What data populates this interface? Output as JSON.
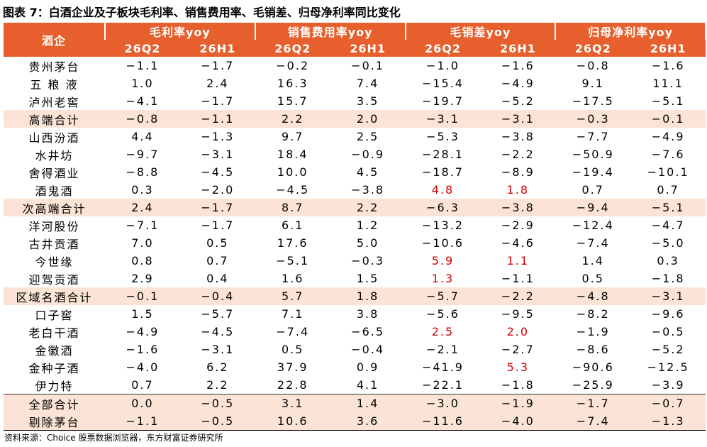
{
  "title": "图表 7：白酒企业及子板块毛利率、销售费用率、毛销差、归母净利率同比变化",
  "table": {
    "header": {
      "first": "酒企",
      "groups": [
        "毛利率yoy",
        "销售费用率yoy",
        "毛销差yoy",
        "归母净利率yoy"
      ],
      "periods": [
        "26Q2",
        "26H1",
        "26Q2",
        "26H1",
        "26Q2",
        "26H1",
        "26Q2",
        "26H1"
      ]
    },
    "rows": [
      [
        "贵州茅台",
        "−1.1",
        "−1.7",
        "−0.2",
        "−0.1",
        "−1.0",
        "−1.6",
        "−0.8",
        "−1.6"
      ],
      [
        "五 粮 液",
        "1.0",
        "2.4",
        "16.3",
        "7.4",
        "−15.4",
        "−4.9",
        "9.1",
        "11.1"
      ],
      [
        "泸州老窖",
        "−4.1",
        "−1.7",
        "15.7",
        "3.5",
        "−19.7",
        "−5.2",
        "−17.5",
        "−5.1"
      ],
      [
        "高端合计",
        "−0.8",
        "−1.1",
        "2.2",
        "2.0",
        "−3.1",
        "−3.1",
        "−0.3",
        "−0.1"
      ],
      [
        "山西汾酒",
        "4.4",
        "−1.3",
        "9.7",
        "2.5",
        "−5.3",
        "−3.8",
        "−7.7",
        "−4.9"
      ],
      [
        "水井坊",
        "−9.7",
        "−3.1",
        "18.4",
        "−0.9",
        "−28.1",
        "−2.2",
        "−50.9",
        "−7.6"
      ],
      [
        "舍得酒业",
        "−8.8",
        "−4.5",
        "10.0",
        "4.5",
        "−18.7",
        "−8.9",
        "−19.4",
        "−10.1"
      ],
      [
        "酒鬼酒",
        "0.3",
        "−2.0",
        "−4.5",
        "−3.8",
        "4.8",
        "1.8",
        "0.7",
        "0.7"
      ],
      [
        "次高端合计",
        "2.4",
        "−1.7",
        "8.7",
        "2.2",
        "−6.3",
        "−3.8",
        "−9.4",
        "−5.1"
      ],
      [
        "洋河股份",
        "−7.1",
        "−1.7",
        "6.1",
        "1.2",
        "−13.2",
        "−2.9",
        "−12.4",
        "−4.7"
      ],
      [
        "古井贡酒",
        "7.0",
        "0.5",
        "17.6",
        "5.0",
        "−10.6",
        "−4.6",
        "−7.4",
        "−5.0"
      ],
      [
        "今世缘",
        "0.8",
        "0.7",
        "−5.1",
        "−0.3",
        "5.9",
        "1.1",
        "1.4",
        "0.3"
      ],
      [
        "迎驾贡酒",
        "2.9",
        "0.4",
        "1.6",
        "1.5",
        "1.3",
        "−1.1",
        "0.5",
        "−1.8"
      ],
      [
        "区域名酒合计",
        "−0.1",
        "−0.4",
        "5.7",
        "1.8",
        "−5.7",
        "−2.2",
        "−4.8",
        "−3.1"
      ],
      [
        "口子窖",
        "1.5",
        "−5.7",
        "7.1",
        "3.8",
        "−5.6",
        "−9.5",
        "−8.2",
        "−9.6"
      ],
      [
        "老白干酒",
        "−4.9",
        "−4.5",
        "−7.4",
        "−6.5",
        "2.5",
        "2.0",
        "−1.9",
        "−0.5"
      ],
      [
        "金徽酒",
        "−1.6",
        "−3.1",
        "0.5",
        "−0.4",
        "−2.1",
        "−2.7",
        "−8.6",
        "−5.2"
      ],
      [
        "金种子酒",
        "−4.0",
        "6.2",
        "37.9",
        "0.9",
        "−41.9",
        "5.3",
        "−90.6",
        "−12.5"
      ],
      [
        "伊力特",
        "0.7",
        "2.2",
        "22.8",
        "4.1",
        "−22.1",
        "−1.8",
        "−25.9",
        "−3.9"
      ],
      [
        "全部合计",
        "0.0",
        "−0.5",
        "3.1",
        "1.4",
        "−3.0",
        "−1.9",
        "−1.7",
        "−0.7"
      ],
      [
        "剔除茅台",
        "−1.1",
        "−0.5",
        "10.6",
        "3.6",
        "−11.6",
        "−4.0",
        "−7.4",
        "−1.3"
      ]
    ]
  },
  "source": "资料来源：Choice 股票数据浏览器，东方财富证券研究所"
}
